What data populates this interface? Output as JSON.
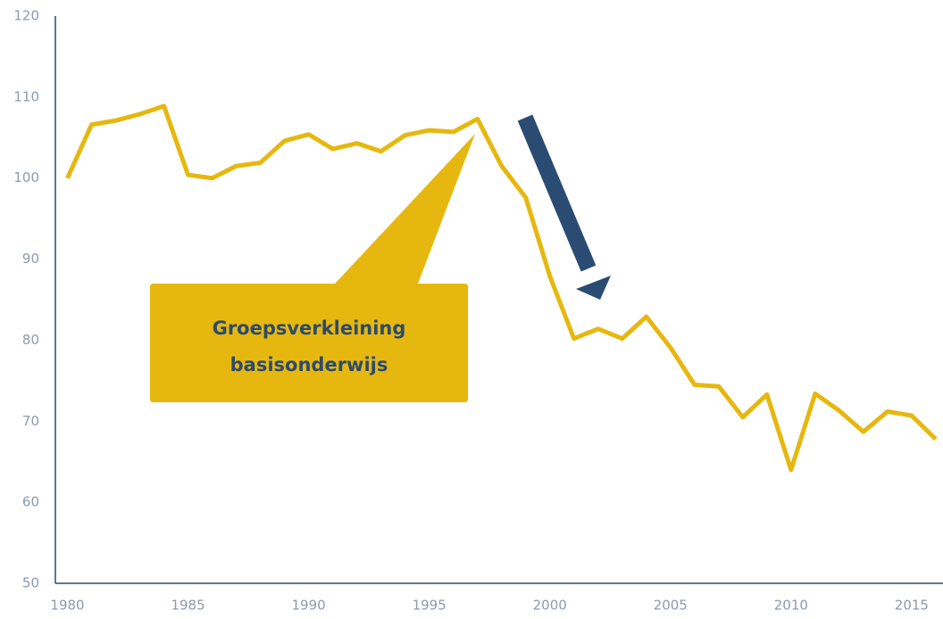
{
  "chart_data": {
    "type": "line",
    "x": [
      1980,
      1981,
      1982,
      1983,
      1984,
      1985,
      1986,
      1987,
      1988,
      1989,
      1990,
      1991,
      1992,
      1993,
      1994,
      1995,
      1996,
      1997,
      1998,
      1999,
      2000,
      2001,
      2002,
      2003,
      2004,
      2005,
      2006,
      2007,
      2008,
      2009,
      2010,
      2011,
      2012,
      2013,
      2014,
      2015,
      2016
    ],
    "series": [
      {
        "color": "#e6b80f",
        "values": [
          100,
          106.6,
          107.1,
          107.9,
          108.9,
          100.4,
          100,
          101.5,
          101.9,
          104.6,
          105.4,
          103.6,
          104.3,
          103.3,
          105.3,
          105.9,
          105.7,
          107.3,
          101.5,
          97.6,
          87.9,
          80.2,
          81.4,
          80.2,
          82.9,
          79.1,
          74.5,
          74.3,
          70.5,
          73.3,
          64.0,
          73.4,
          71.3,
          68.7,
          71.2,
          70.7,
          67.8
        ]
      }
    ],
    "xlim": [
      1979.5,
      2016.3
    ],
    "xticks": [
      1980,
      1985,
      1990,
      1995,
      2000,
      2005,
      2010,
      2015
    ],
    "ylim": [
      50,
      120
    ],
    "yticks": [
      50,
      60,
      70,
      80,
      90,
      100,
      110,
      120
    ],
    "grid": false,
    "annotation": [
      "Groepsverkleining",
      "basisonderwijs"
    ]
  }
}
